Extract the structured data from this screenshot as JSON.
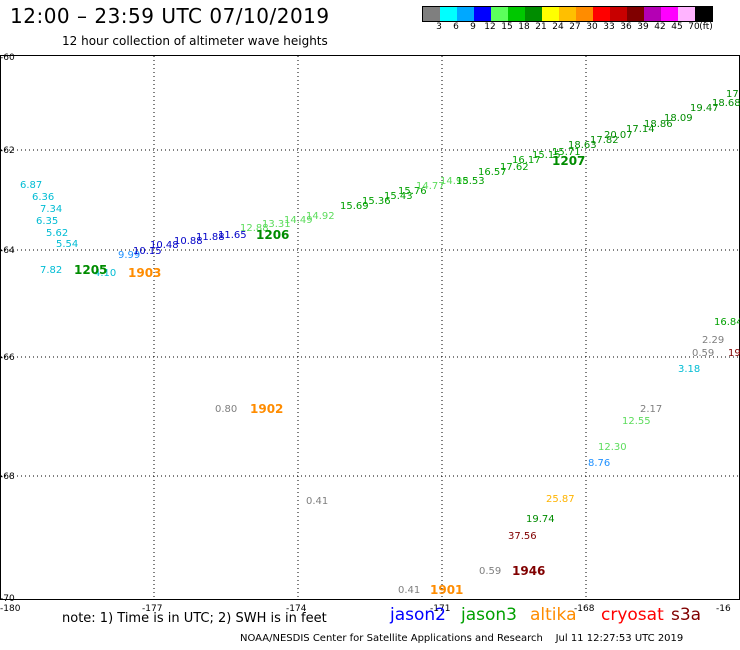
{
  "header": {
    "title": "12:00 – 23:59 UTC 07/10/2019",
    "subtitle": "12 hour collection of altimeter wave heights"
  },
  "legend": {
    "unit": "(ft)",
    "colors": [
      "#7f7f7f",
      "#00ffff",
      "#00a8ff",
      "#0000ff",
      "#5cff5c",
      "#00c800",
      "#008c00",
      "#ffff00",
      "#ffbf00",
      "#ff8c00",
      "#ff0000",
      "#c80000",
      "#800000",
      "#b400b4",
      "#ff00ff",
      "#ffb4ff",
      "#000000"
    ],
    "labels": [
      "3",
      "6",
      "9",
      "12",
      "15",
      "18",
      "21",
      "24",
      "27",
      "30",
      "33",
      "36",
      "39",
      "42",
      "45",
      "70"
    ]
  },
  "axes": {
    "x_ticks": [
      "-180",
      "-177",
      "-174",
      "-171",
      "-168",
      "-16"
    ],
    "y_ticks": [
      "-60",
      "-62",
      "-64",
      "-66",
      "-68",
      "-70"
    ]
  },
  "map_points": [
    {
      "v": "6.87",
      "color": "#00bcd4"
    },
    {
      "v": "6.36",
      "color": "#00bcd4"
    },
    {
      "v": "7.34",
      "color": "#00bcd4"
    },
    {
      "v": "6.35",
      "color": "#00bcd4"
    },
    {
      "v": "5.62",
      "color": "#00bcd4"
    },
    {
      "v": "5.54",
      "color": "#00bcd4"
    },
    {
      "v": "7.82",
      "color": "#00bcd4"
    },
    {
      "v": "4.10",
      "color": "#00bcd4"
    },
    {
      "v": "9.99",
      "color": "#1e90ff"
    },
    {
      "v": "10.15",
      "color": "#0000c8"
    },
    {
      "v": "10.48",
      "color": "#0000c8"
    },
    {
      "v": "10.88",
      "color": "#0000c8"
    },
    {
      "v": "11.88",
      "color": "#0000c8"
    },
    {
      "v": "11.65",
      "color": "#0000c8"
    },
    {
      "v": "12.88",
      "color": "#5cdc5c"
    },
    {
      "v": "13.31",
      "color": "#5cdc5c"
    },
    {
      "v": "14.49",
      "color": "#5cdc5c"
    },
    {
      "v": "14.92",
      "color": "#5cdc5c"
    },
    {
      "v": "15.69",
      "color": "#00a000"
    },
    {
      "v": "15.36",
      "color": "#00a000"
    },
    {
      "v": "15.43",
      "color": "#00a000"
    },
    {
      "v": "15.76",
      "color": "#00a000"
    },
    {
      "v": "14.77",
      "color": "#5cdc5c"
    },
    {
      "v": "14.98",
      "color": "#5cdc5c"
    },
    {
      "v": "15.53",
      "color": "#00a000"
    },
    {
      "v": "16.57",
      "color": "#00a000"
    },
    {
      "v": "17.62",
      "color": "#00a000"
    },
    {
      "v": "16.17",
      "color": "#00a000"
    },
    {
      "v": "15.15",
      "color": "#00a000"
    },
    {
      "v": "15.71",
      "color": "#00a000"
    },
    {
      "v": "18.63",
      "color": "#008c00"
    },
    {
      "v": "17.82",
      "color": "#008c00"
    },
    {
      "v": "20.07",
      "color": "#008c00"
    },
    {
      "v": "17.14",
      "color": "#008c00"
    },
    {
      "v": "18.86",
      "color": "#008c00"
    },
    {
      "v": "18.09",
      "color": "#008c00"
    },
    {
      "v": "19.47",
      "color": "#008c00"
    },
    {
      "v": "18.68",
      "color": "#008c00"
    },
    {
      "v": "17",
      "color": "#008c00"
    },
    {
      "v": "16.84",
      "color": "#00a000"
    },
    {
      "v": "2.29",
      "color": "#7f7f7f"
    },
    {
      "v": "0.59",
      "color": "#7f7f7f"
    },
    {
      "v": "19",
      "color": "#800000"
    },
    {
      "v": "3.18",
      "color": "#00bcd4"
    },
    {
      "v": "2.17",
      "color": "#7f7f7f"
    },
    {
      "v": "12.55",
      "color": "#5cdc5c"
    },
    {
      "v": "12.30",
      "color": "#5cdc5c"
    },
    {
      "v": "8.76",
      "color": "#1e90ff"
    },
    {
      "v": "0.80",
      "color": "#7f7f7f"
    },
    {
      "v": "0.41",
      "color": "#7f7f7f"
    },
    {
      "v": "25.87",
      "color": "#ffb400"
    },
    {
      "v": "19.74",
      "color": "#008c00"
    },
    {
      "v": "37.56",
      "color": "#800000"
    },
    {
      "v": "0.59",
      "color": "#7f7f7f"
    },
    {
      "v": "0.41",
      "color": "#7f7f7f"
    }
  ],
  "time_labels": [
    {
      "v": "1205",
      "color": "#008c00"
    },
    {
      "v": "1903",
      "color": "#ff8c00"
    },
    {
      "v": "1206",
      "color": "#008c00"
    },
    {
      "v": "1207",
      "color": "#008c00"
    },
    {
      "v": "1902",
      "color": "#ff8c00"
    },
    {
      "v": "1946",
      "color": "#800000"
    },
    {
      "v": "1901",
      "color": "#ff8c00"
    }
  ],
  "note": "note: 1) Time is in UTC; 2) SWH is in feet",
  "satellites": [
    {
      "name": "jason2",
      "color": "#0000ff"
    },
    {
      "name": "jason3",
      "color": "#00a000"
    },
    {
      "name": "altika",
      "color": "#ff8c00"
    },
    {
      "name": "cryosat",
      "color": "#ff0000"
    },
    {
      "name": "s3a",
      "color": "#800000"
    }
  ],
  "footer": {
    "org": "NOAA/NESDIS Center for Satellite Applications and Research",
    "stamp": "Jul 11 12:27:53 UTC 2019"
  }
}
